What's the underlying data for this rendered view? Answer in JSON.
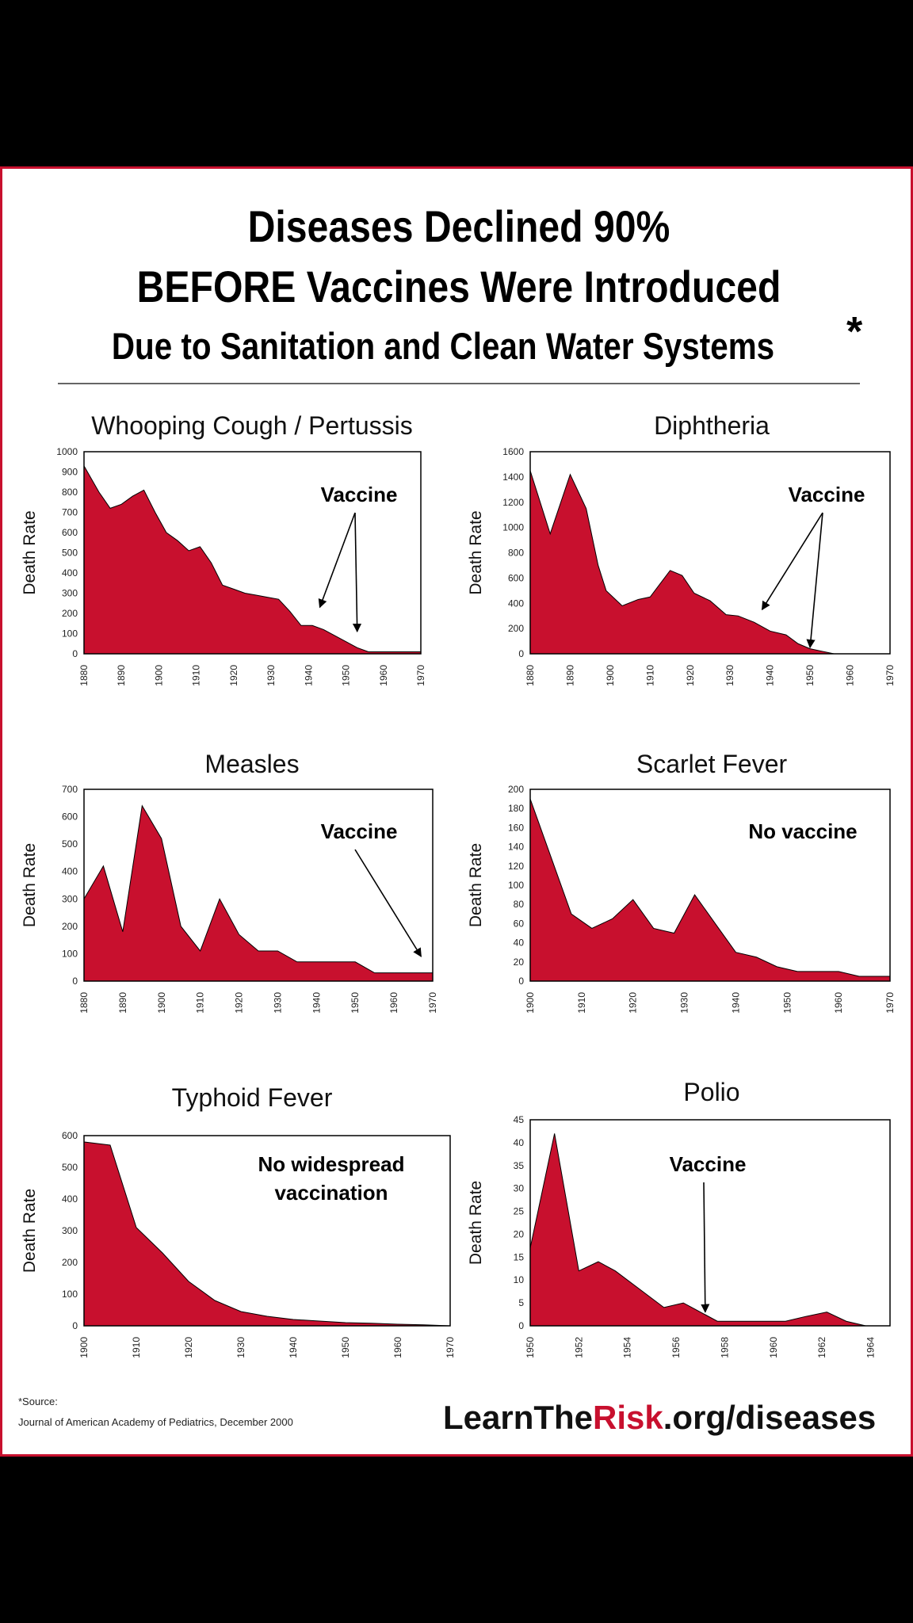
{
  "header": {
    "line1": "Diseases Declined 90%",
    "line2": "BEFORE Vaccines Were Introduced",
    "line3": "Due to Sanitation and Clean Water Systems",
    "asterisk": "*"
  },
  "colors": {
    "fill": "#c8102e",
    "border": "#c8102e",
    "text": "#000000"
  },
  "footer": {
    "source_label": "*Source:",
    "source_text": "Journal of American Academy of Pediatrics, December 2000",
    "url_part1": "LearnThe",
    "url_part2": "Risk",
    "url_part3": ".org/diseases"
  },
  "chart_data": [
    {
      "type": "area",
      "title": "Whooping Cough / Pertussis",
      "ylabel": "Death Rate",
      "ylim": [
        0,
        1000
      ],
      "yticks": [
        0,
        100,
        200,
        300,
        400,
        500,
        600,
        700,
        800,
        900,
        1000
      ],
      "xlim": [
        1880,
        1970
      ],
      "xticks": [
        1880,
        1890,
        1900,
        1910,
        1920,
        1930,
        1940,
        1950,
        1960,
        1970
      ],
      "x": [
        1880,
        1884,
        1887,
        1890,
        1893,
        1896,
        1899,
        1902,
        1905,
        1908,
        1911,
        1914,
        1917,
        1920,
        1923,
        1926,
        1929,
        1932,
        1935,
        1938,
        1941,
        1944,
        1947,
        1950,
        1953,
        1956,
        1959,
        1962,
        1965,
        1968,
        1970
      ],
      "y": [
        930,
        800,
        720,
        740,
        780,
        810,
        700,
        600,
        560,
        510,
        530,
        450,
        340,
        320,
        300,
        290,
        280,
        270,
        210,
        140,
        140,
        120,
        90,
        60,
        30,
        10,
        10,
        10,
        10,
        10,
        10
      ],
      "annotation": "Vaccine",
      "arrows_to": [
        [
          1943,
          230
        ],
        [
          1953,
          110
        ]
      ]
    },
    {
      "type": "area",
      "title": "Diphtheria",
      "ylabel": "Death Rate",
      "ylim": [
        0,
        1600
      ],
      "yticks": [
        0,
        200,
        400,
        600,
        800,
        1000,
        1200,
        1400,
        1600
      ],
      "xlim": [
        1880,
        1970
      ],
      "xticks": [
        1880,
        1890,
        1900,
        1910,
        1920,
        1930,
        1940,
        1950,
        1960,
        1970
      ],
      "x": [
        1880,
        1885,
        1890,
        1894,
        1897,
        1899,
        1903,
        1907,
        1910,
        1915,
        1918,
        1921,
        1925,
        1929,
        1932,
        1936,
        1940,
        1944,
        1947,
        1950,
        1953,
        1956
      ],
      "y": [
        1450,
        950,
        1420,
        1150,
        700,
        500,
        380,
        430,
        450,
        660,
        620,
        480,
        420,
        310,
        300,
        250,
        180,
        150,
        80,
        40,
        20,
        0
      ],
      "annotation": "Vaccine",
      "arrows_to": [
        [
          1938,
          350
        ],
        [
          1950,
          50
        ]
      ]
    },
    {
      "type": "area",
      "title": "Measles",
      "ylabel": "Death Rate",
      "ylim": [
        0,
        700
      ],
      "yticks": [
        0,
        100,
        200,
        300,
        400,
        500,
        600,
        700
      ],
      "xlim": [
        1880,
        1970
      ],
      "xticks": [
        1880,
        1890,
        1900,
        1910,
        1920,
        1930,
        1940,
        1950,
        1960,
        1970
      ],
      "x": [
        1880,
        1885,
        1890,
        1895,
        1900,
        1905,
        1910,
        1915,
        1920,
        1925,
        1930,
        1935,
        1940,
        1945,
        1950,
        1955,
        1960,
        1965,
        1970
      ],
      "y": [
        300,
        420,
        180,
        640,
        520,
        200,
        110,
        300,
        170,
        110,
        110,
        70,
        70,
        70,
        70,
        30,
        30,
        30,
        30
      ],
      "annotation": "Vaccine",
      "arrows_to": [
        [
          1967,
          90
        ]
      ]
    },
    {
      "type": "area",
      "title": "Scarlet Fever",
      "ylabel": "Death Rate",
      "ylim": [
        0,
        200
      ],
      "yticks": [
        0,
        20,
        40,
        60,
        80,
        100,
        120,
        140,
        160,
        180,
        200
      ],
      "xlim": [
        1900,
        1970
      ],
      "xticks": [
        1900,
        1910,
        1920,
        1930,
        1940,
        1950,
        1960,
        1970
      ],
      "x": [
        1900,
        1904,
        1908,
        1912,
        1916,
        1920,
        1924,
        1928,
        1932,
        1936,
        1940,
        1944,
        1948,
        1952,
        1956,
        1960,
        1964,
        1968,
        1970
      ],
      "y": [
        190,
        130,
        70,
        55,
        65,
        85,
        55,
        50,
        90,
        60,
        30,
        25,
        15,
        10,
        10,
        10,
        5,
        5,
        5
      ],
      "annotation": "No vaccine",
      "arrows_to": []
    },
    {
      "type": "area",
      "title": "Typhoid Fever",
      "ylabel": "Death Rate",
      "ylim": [
        0,
        600
      ],
      "yticks": [
        0,
        100,
        200,
        300,
        400,
        500,
        600
      ],
      "xlim": [
        1900,
        1970
      ],
      "xticks": [
        1900,
        1910,
        1920,
        1930,
        1940,
        1950,
        1960,
        1970
      ],
      "x": [
        1900,
        1905,
        1910,
        1915,
        1920,
        1925,
        1930,
        1935,
        1940,
        1945,
        1950,
        1955,
        1960,
        1965,
        1970
      ],
      "y": [
        580,
        570,
        310,
        230,
        140,
        80,
        45,
        30,
        20,
        15,
        10,
        8,
        5,
        3,
        0
      ],
      "annotation": "No widespread vaccination",
      "arrows_to": []
    },
    {
      "type": "area",
      "title": "Polio",
      "ylabel": "Death Rate",
      "ylim": [
        0,
        45
      ],
      "yticks": [
        0,
        5,
        10,
        15,
        20,
        25,
        30,
        35,
        40,
        45
      ],
      "xlim": [
        1950,
        1964.8
      ],
      "xticks": [
        1950,
        1952,
        1954,
        1956,
        1958,
        1960,
        1962,
        1964
      ],
      "x": [
        1950,
        1951,
        1952,
        1952.8,
        1953.5,
        1954.5,
        1955.5,
        1956.3,
        1957,
        1957.7,
        1958.5,
        1959.5,
        1960.5,
        1961.3,
        1962.2,
        1963,
        1963.8
      ],
      "y": [
        17,
        42,
        12,
        14,
        12,
        8,
        4,
        5,
        3,
        1,
        1,
        1,
        1,
        2,
        3,
        1,
        0
      ],
      "annotation": "Vaccine",
      "arrows_to": [
        [
          1957.2,
          3
        ]
      ]
    }
  ]
}
